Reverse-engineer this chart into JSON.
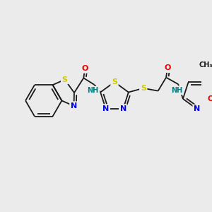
{
  "bg_color": "#ebebeb",
  "bond_color": "#1a1a1a",
  "atom_colors": {
    "S": "#cccc00",
    "N": "#0000ee",
    "O": "#ee0000",
    "NH": "#008080",
    "C": "#1a1a1a",
    "CH3_color": "#1a1a1a"
  },
  "figsize": [
    3.0,
    3.0
  ],
  "dpi": 100
}
